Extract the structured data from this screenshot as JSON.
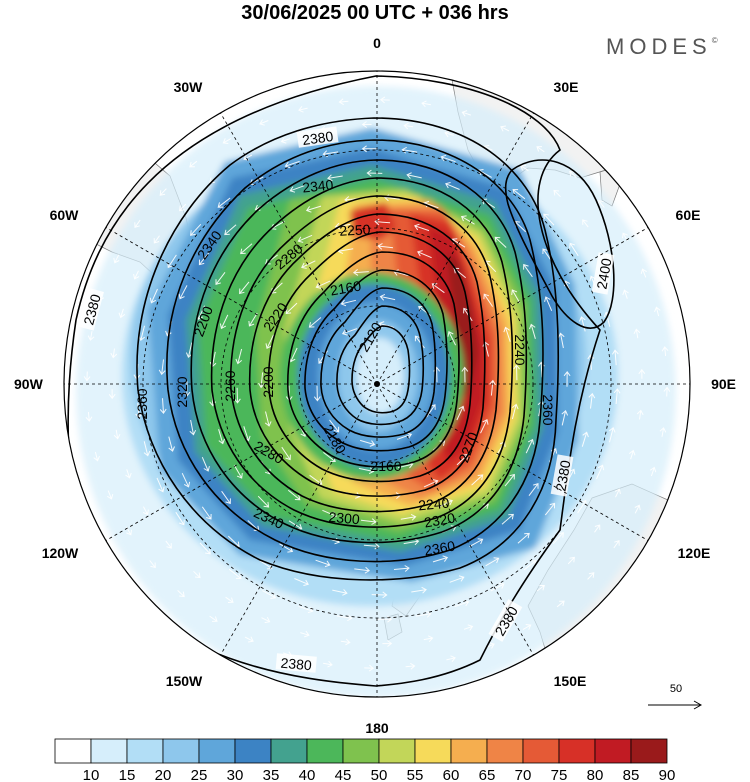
{
  "title": "30/06/2025  00 UTC  + 036 hrs",
  "brand": "MODES",
  "brand_mark": "©",
  "longitude_labels": [
    "0",
    "30E",
    "60E",
    "90E",
    "120E",
    "150E",
    "180",
    "150W",
    "120W",
    "90W",
    "60W",
    "30W"
  ],
  "contours": [
    "2120",
    "2160",
    "2160",
    "2180",
    "2200",
    "2200",
    "2200",
    "2220",
    "2240",
    "2240",
    "2250",
    "2260",
    "2270",
    "2280",
    "2280",
    "2280",
    "2300",
    "2320",
    "2320",
    "2340",
    "2340",
    "2340",
    "2360",
    "2360",
    "2360",
    "2380",
    "2380",
    "2380",
    "2380",
    "2380",
    "2380",
    "2400"
  ],
  "reference_vector": {
    "label": "50"
  },
  "colorbar": {
    "labels": [
      "10",
      "15",
      "20",
      "25",
      "30",
      "35",
      "40",
      "45",
      "50",
      "55",
      "60",
      "65",
      "70",
      "75",
      "80",
      "85",
      "90"
    ],
    "colors": [
      "#ffffff",
      "#d6eefb",
      "#b2def6",
      "#8ec7ec",
      "#5fa6da",
      "#3c83c4",
      "#43a28f",
      "#4cb75a",
      "#7fc24e",
      "#c2d659",
      "#f6da5a",
      "#f5ae4f",
      "#ef8446",
      "#e55a36",
      "#d73027",
      "#c11b23",
      "#9a1a1b"
    ]
  },
  "colors": {
    "land": "#f2f2f2",
    "coast": "#777777",
    "background": "#ffffff"
  },
  "icons": [
    "pole-dot",
    "wind-arrow"
  ]
}
